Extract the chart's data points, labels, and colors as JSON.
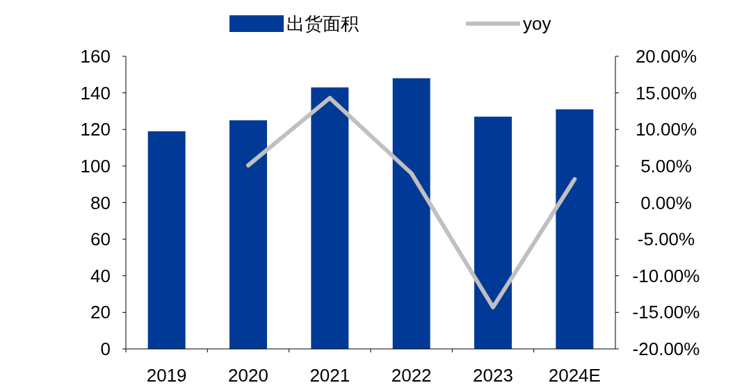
{
  "chart_data": {
    "type": "bar",
    "categories": [
      "2019",
      "2020",
      "2021",
      "2022",
      "2023",
      "2024E"
    ],
    "series": [
      {
        "name": "出货面积",
        "color": "#003a96",
        "values": [
          119,
          125,
          143,
          148,
          127,
          131
        ]
      },
      {
        "name": "yoy",
        "type": "line",
        "axis": "y2",
        "color": "#c0c0c0",
        "values": [
          null,
          5.1,
          14.3,
          4.0,
          -14.3,
          3.2
        ]
      }
    ],
    "ylim": [
      0,
      160
    ],
    "yticks": [
      0,
      20,
      40,
      60,
      80,
      100,
      120,
      140,
      160
    ],
    "y2lim": [
      -20,
      20
    ],
    "y2ticks": [
      {
        "value": -20,
        "label": "-20.00%"
      },
      {
        "value": -15,
        "label": "-15.00%"
      },
      {
        "value": -10,
        "label": "-10.00%"
      },
      {
        "value": -5,
        "label": "-5.00%"
      },
      {
        "value": 0,
        "label": "0.00%"
      },
      {
        "value": 5,
        "label": "5.00%"
      },
      {
        "value": 10,
        "label": "10.00%"
      },
      {
        "value": 15,
        "label": "15.00%"
      },
      {
        "value": 20,
        "label": "20.00%"
      }
    ],
    "legend": "top",
    "grid": false,
    "marker": "none",
    "line_style": "solid"
  }
}
